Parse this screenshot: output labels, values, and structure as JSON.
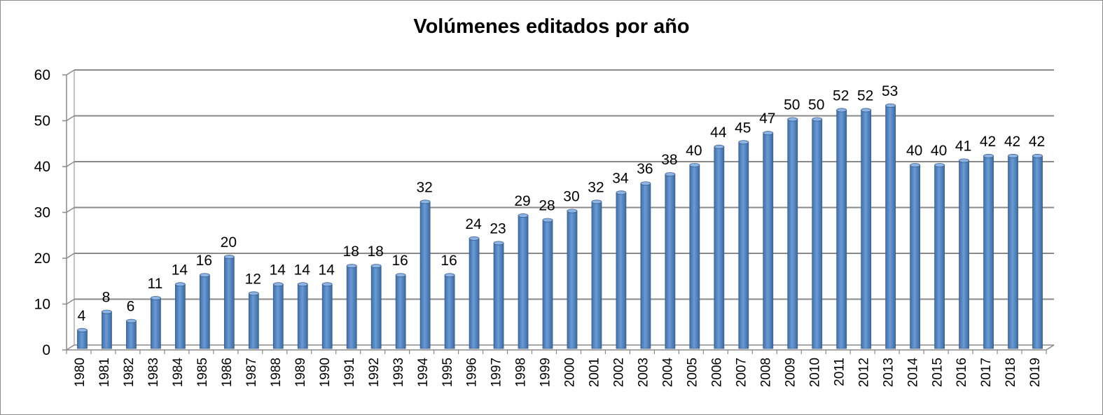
{
  "chart_data": {
    "type": "bar",
    "title": "Volúmenes editados por año",
    "xlabel": "",
    "ylabel": "",
    "ylim": [
      0,
      60
    ],
    "yticks": [
      "0",
      "10",
      "20",
      "30",
      "40",
      "50",
      "60"
    ],
    "grid": true,
    "legend": "none",
    "bar_color": "#4f81bd",
    "categories": [
      "1980",
      "1981",
      "1982",
      "1983",
      "1984",
      "1985",
      "1986",
      "1987",
      "1988",
      "1989",
      "1990",
      "1991",
      "1992",
      "1993",
      "1994",
      "1995",
      "1996",
      "1997",
      "1998",
      "1999",
      "2000",
      "2001",
      "2002",
      "2003",
      "2004",
      "2005",
      "2006",
      "2007",
      "2008",
      "2009",
      "2010",
      "2011",
      "2012",
      "2013",
      "2014",
      "2015",
      "2016",
      "2017",
      "2018",
      "2019"
    ],
    "values": [
      4,
      8,
      6,
      11,
      14,
      16,
      20,
      12,
      14,
      14,
      14,
      18,
      18,
      16,
      32,
      16,
      24,
      23,
      29,
      28,
      30,
      32,
      34,
      36,
      38,
      40,
      44,
      45,
      47,
      50,
      50,
      52,
      52,
      53,
      40,
      40,
      41,
      42,
      42,
      42
    ]
  }
}
